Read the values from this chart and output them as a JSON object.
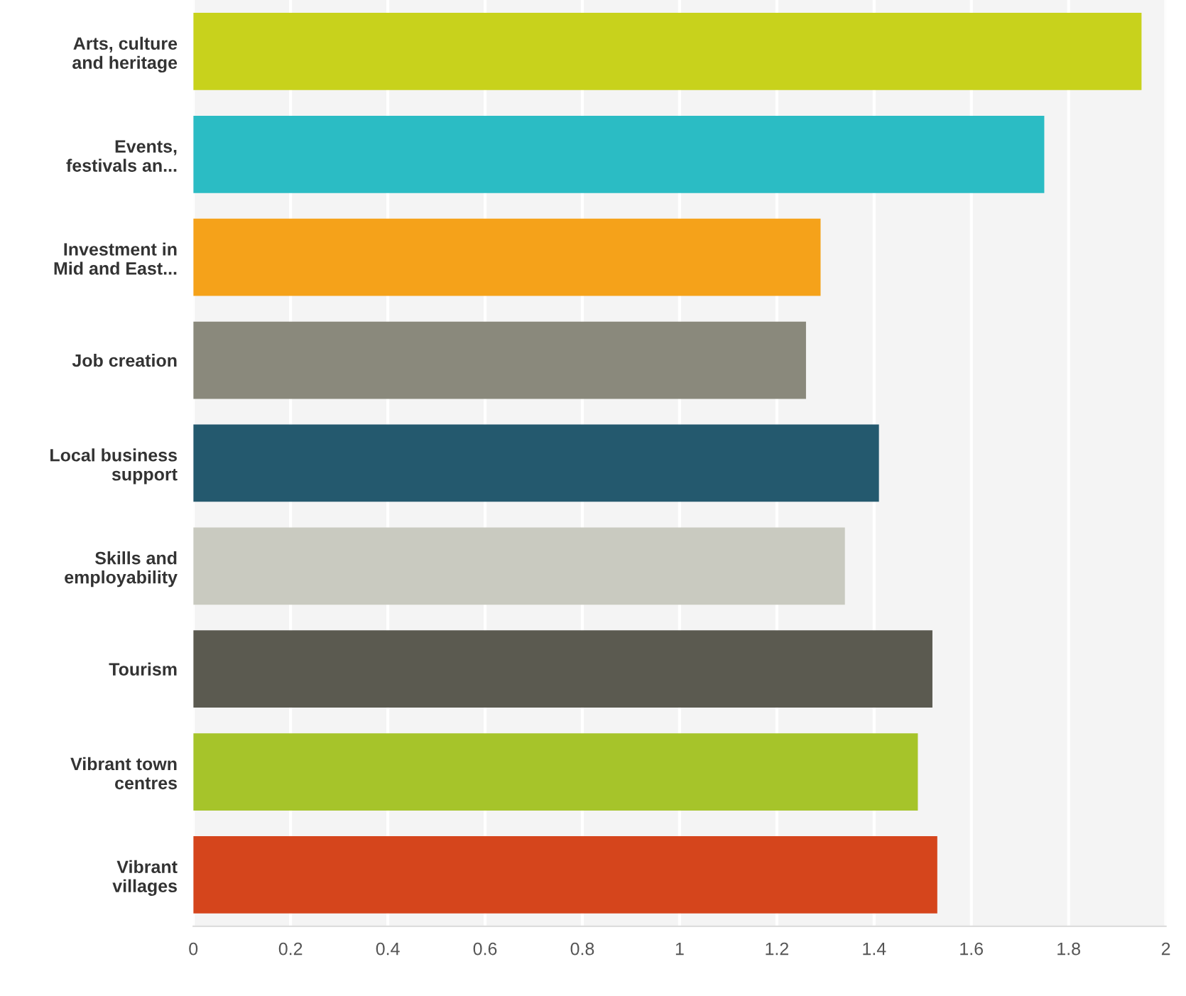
{
  "chart_data": {
    "type": "bar",
    "orientation": "horizontal",
    "categories": [
      "Arts, culture\nand heritage",
      "Events,\nfestivals an...",
      "Investment in\nMid and East...",
      "Job creation",
      "Local business\nsupport",
      "Skills and\nemployability",
      "Tourism",
      "Vibrant town\ncentres",
      "Vibrant\nvillages"
    ],
    "values": [
      1.95,
      1.75,
      1.29,
      1.26,
      1.41,
      1.34,
      1.52,
      1.49,
      1.53
    ],
    "colors": [
      "#c8d21c",
      "#2bbcc4",
      "#f5a21a",
      "#8a897c",
      "#24596e",
      "#c9cac0",
      "#5b5a50",
      "#a6c42a",
      "#d5451c"
    ],
    "xlim": [
      0,
      2
    ],
    "xticks": [
      0,
      0.2,
      0.4,
      0.6,
      0.8,
      1,
      1.2,
      1.4,
      1.6,
      1.8,
      2
    ],
    "grid": "x"
  }
}
